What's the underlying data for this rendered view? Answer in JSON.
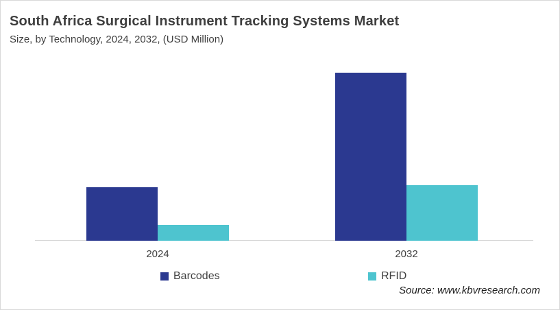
{
  "header": {
    "title": "South Africa Surgical Instrument Tracking Systems Market",
    "subtitle": "Size, by Technology, 2024, 2032, (USD Million)"
  },
  "chart_data": {
    "type": "bar",
    "title": "South Africa Surgical Instrument Tracking Systems Market",
    "subtitle": "Size, by Technology, 2024, 2032, (USD Million)",
    "categories": [
      "2024",
      "2032"
    ],
    "series": [
      {
        "name": "Barcodes",
        "color": "#2B3990",
        "values": [
          78,
          245
        ]
      },
      {
        "name": "RFID",
        "color": "#4EC4CF",
        "values": [
          23,
          81
        ]
      }
    ],
    "xlabel": "",
    "ylabel": "USD Million",
    "ylim": [
      0,
      260
    ],
    "value_axis_shown": false,
    "value_labels_shown": false,
    "units": "relative heights (no numeric value labels or y-axis shown in chart)",
    "gridlines": false,
    "legend_position": "bottom"
  },
  "legend": {
    "items": [
      {
        "label": "Barcodes",
        "color": "#2B3990"
      },
      {
        "label": "RFID",
        "color": "#4EC4CF"
      }
    ]
  },
  "source": {
    "text": "Source: www.kbvresearch.com"
  },
  "colors": {
    "barcodes": "#2B3990",
    "rfid": "#4EC4CF",
    "axis_line": "#D6D6D6",
    "title_text": "#3F3F3F",
    "border": "#D9D9D9"
  }
}
